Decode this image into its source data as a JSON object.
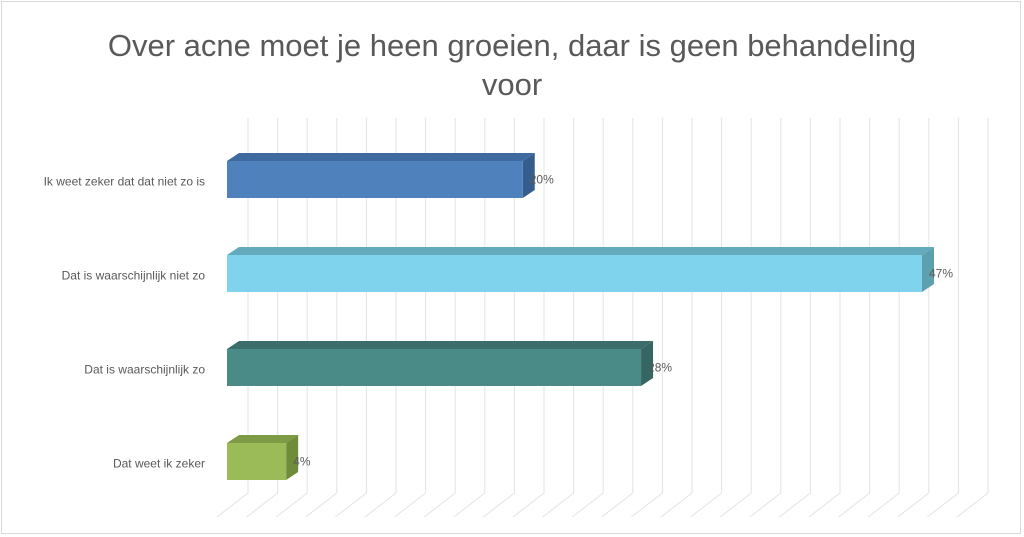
{
  "chart_data": {
    "type": "bar",
    "orientation": "horizontal",
    "style": "3d",
    "title_lines": [
      "Over acne moet je heen groeien, daar is geen behandeling",
      "voor"
    ],
    "xlabel": "",
    "ylabel": "",
    "categories": [
      "Ik weet zeker dat dat niet zo is",
      "Dat is waarschijnlijk niet zo",
      "Dat is waarschijnlijk zo",
      "Dat weet ik zeker"
    ],
    "values": [
      20,
      47,
      28,
      4
    ],
    "value_labels": [
      "20%",
      "47%",
      "28%",
      "4%"
    ],
    "xlim": [
      0,
      52
    ],
    "grid": true,
    "legend": "none",
    "colors": [
      "#4f81bd",
      "#7fd3ec",
      "#4a8a87",
      "#9bbb59"
    ],
    "side_colors": [
      "#355e8f",
      "#5da0b0",
      "#356663",
      "#6f8c3b"
    ],
    "top_colors": [
      "#3e6aa0",
      "#64aabd",
      "#3b6e6b",
      "#7d9a45"
    ]
  }
}
